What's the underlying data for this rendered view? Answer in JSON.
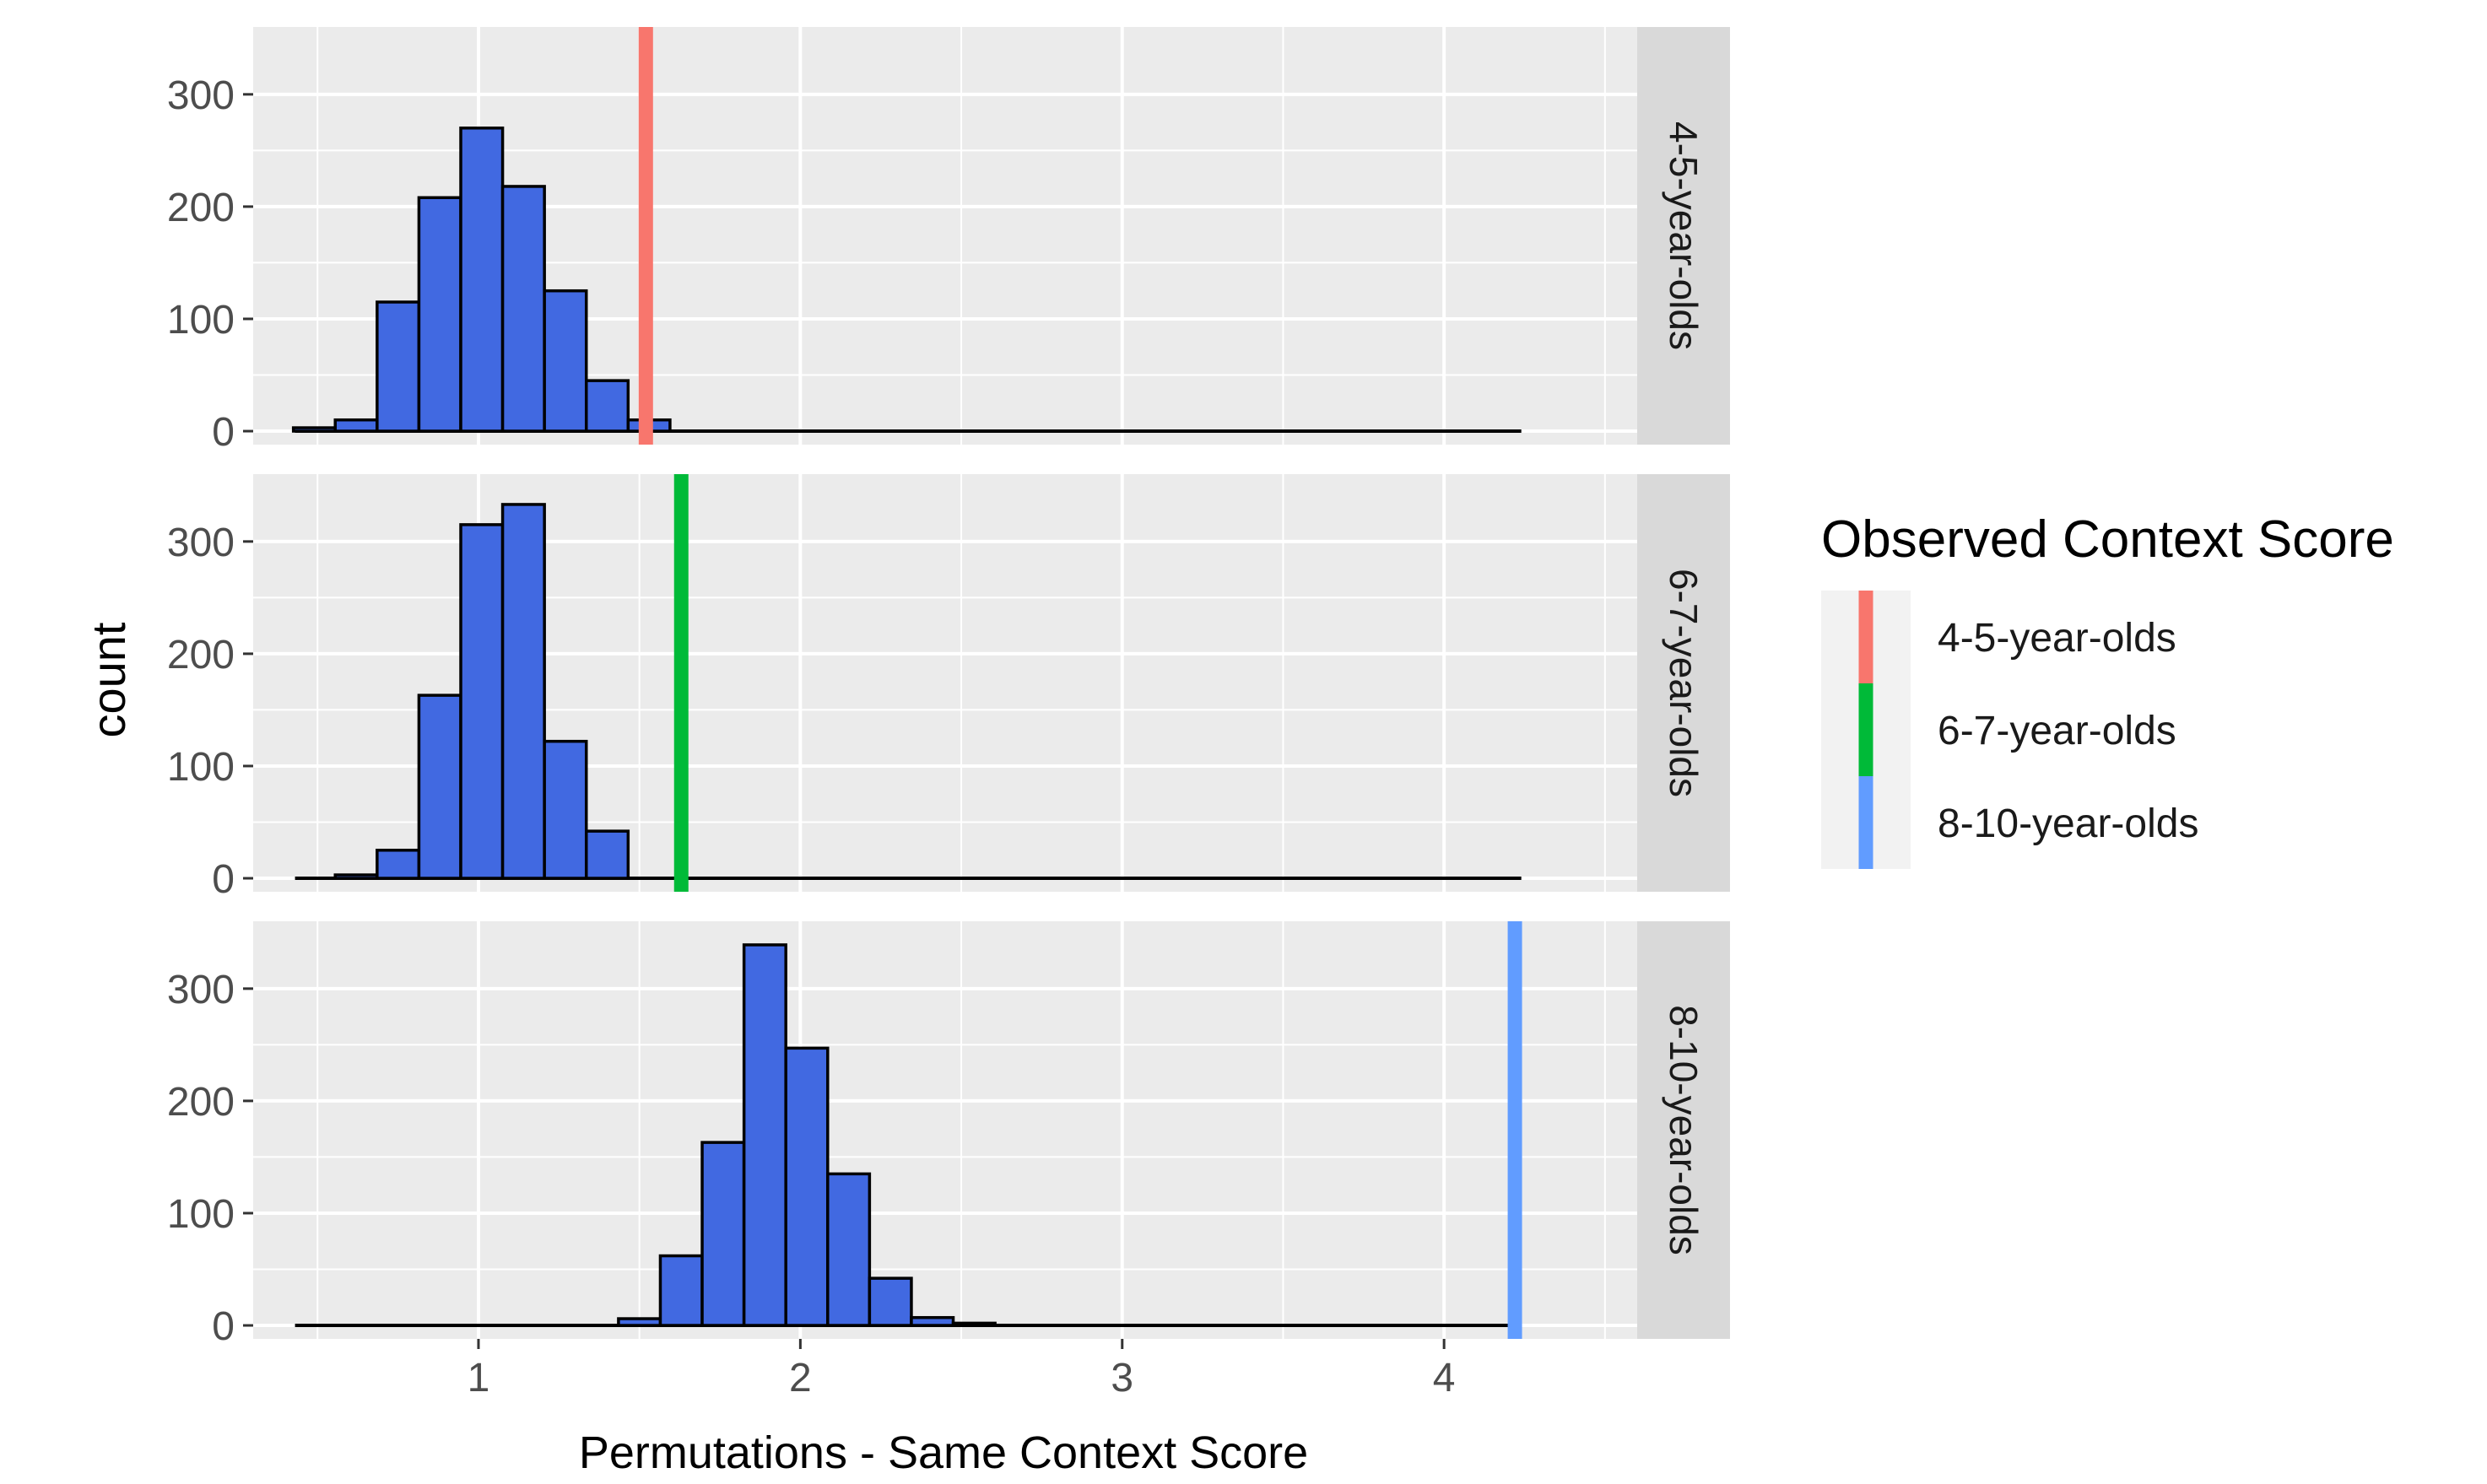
{
  "chart_data": {
    "type": "bar",
    "subtype": "faceted-histogram",
    "xlabel": "Permutations - Same Context Score",
    "ylabel": "count",
    "xlim": [
      0.3,
      4.6
    ],
    "ylim": [
      -12,
      360
    ],
    "xticks": [
      1,
      2,
      3,
      4
    ],
    "yticks": [
      0,
      100,
      200,
      300
    ],
    "bin_width": 0.13,
    "bar_fill": "#4169e1",
    "bar_edge": "#000000",
    "panel_background": "#ebebeb",
    "strip_background": "#d9d9d9",
    "gridlines": true,
    "legend": {
      "title": "Observed Context Score",
      "position": "right",
      "entries": [
        {
          "label": "4-5-year-olds",
          "color": "#f8766d"
        },
        {
          "label": "6-7-year-olds",
          "color": "#00ba38"
        },
        {
          "label": "8-10-year-olds",
          "color": "#619cff"
        }
      ]
    },
    "facets": [
      {
        "label": "4-5-year-olds",
        "color": "#f8766d",
        "observed_line_x": 1.52,
        "baseline_x": [
          0.43,
          4.24
        ],
        "bins": [
          {
            "x": 0.49,
            "count": 3
          },
          {
            "x": 0.62,
            "count": 10
          },
          {
            "x": 0.75,
            "count": 115
          },
          {
            "x": 0.88,
            "count": 208
          },
          {
            "x": 1.01,
            "count": 270
          },
          {
            "x": 1.14,
            "count": 218
          },
          {
            "x": 1.27,
            "count": 125
          },
          {
            "x": 1.4,
            "count": 45
          },
          {
            "x": 1.53,
            "count": 10
          }
        ]
      },
      {
        "label": "6-7-year-olds",
        "color": "#00ba38",
        "observed_line_x": 1.63,
        "baseline_x": [
          0.43,
          4.24
        ],
        "bins": [
          {
            "x": 0.62,
            "count": 3
          },
          {
            "x": 0.75,
            "count": 25
          },
          {
            "x": 0.88,
            "count": 163
          },
          {
            "x": 1.01,
            "count": 315
          },
          {
            "x": 1.14,
            "count": 333
          },
          {
            "x": 1.27,
            "count": 122
          },
          {
            "x": 1.4,
            "count": 42
          }
        ]
      },
      {
        "label": "8-10-year-olds",
        "color": "#619cff",
        "observed_line_x": 4.22,
        "baseline_x": [
          0.43,
          4.24
        ],
        "bins": [
          {
            "x": 1.5,
            "count": 6
          },
          {
            "x": 1.63,
            "count": 62
          },
          {
            "x": 1.76,
            "count": 163
          },
          {
            "x": 1.89,
            "count": 339
          },
          {
            "x": 2.02,
            "count": 247
          },
          {
            "x": 2.15,
            "count": 135
          },
          {
            "x": 2.28,
            "count": 42
          },
          {
            "x": 2.41,
            "count": 7
          },
          {
            "x": 2.54,
            "count": 2
          }
        ]
      }
    ]
  }
}
